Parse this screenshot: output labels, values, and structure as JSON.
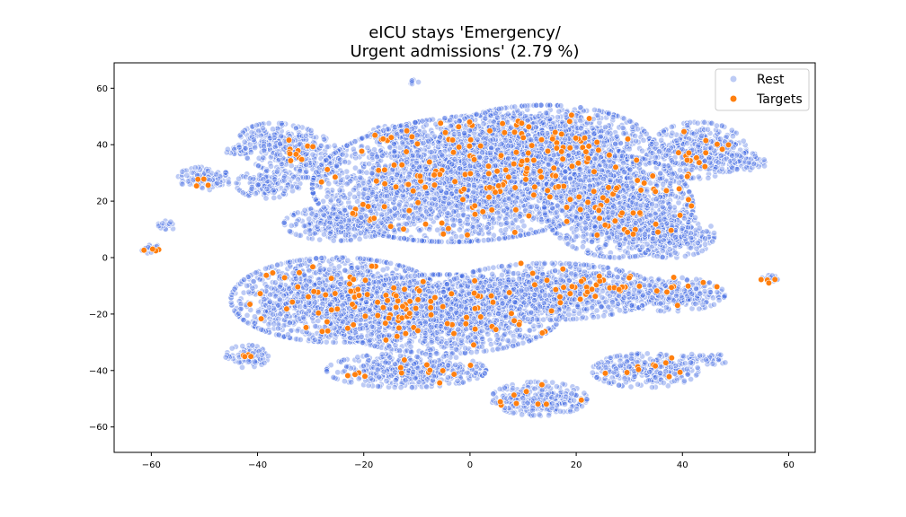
{
  "chart_data": {
    "type": "scatter",
    "title": [
      "eICU stays 'Emergency/",
      "Urgent admissions' (2.79 %)"
    ],
    "xlabel": "",
    "ylabel": "",
    "xlim": [
      -67,
      65
    ],
    "ylim": [
      -69,
      69
    ],
    "xticks": [
      -60,
      -40,
      -20,
      0,
      20,
      40,
      60
    ],
    "yticks": [
      -60,
      -40,
      -20,
      0,
      20,
      40,
      60
    ],
    "grid": false,
    "legend": {
      "position": "top-right",
      "entries": [
        "Rest",
        "Targets"
      ]
    },
    "colors": {
      "rest": "#4169e1",
      "rest_edge": "#ffffff",
      "target": "#ff7f0e",
      "target_edge": "#ffffff"
    },
    "series": [
      {
        "name": "Rest",
        "clusters": [
          {
            "cx": -60,
            "cy": 3,
            "rx": 1.8,
            "ry": 2
          },
          {
            "cx": -57,
            "cy": 11.5,
            "rx": 2,
            "ry": 1.5
          },
          {
            "cx": -50,
            "cy": 28,
            "rx": 5,
            "ry": 4,
            "rot": -10
          },
          {
            "cx": -43,
            "cy": 38,
            "rx": 3,
            "ry": 2
          },
          {
            "cx": -34,
            "cy": 38,
            "rx": 8,
            "ry": 11,
            "rot": 45
          },
          {
            "cx": -38,
            "cy": 26,
            "rx": 6,
            "ry": 5
          },
          {
            "cx": -11,
            "cy": 62,
            "rx": 1.3,
            "ry": 1
          },
          {
            "cx": -14,
            "cy": 43,
            "rx": 5,
            "ry": 4
          },
          {
            "cx": 0,
            "cy": 28,
            "rx": 30,
            "ry": 22,
            "rot": 12
          },
          {
            "cx": 14,
            "cy": 40,
            "rx": 20,
            "ry": 14
          },
          {
            "cx": 28,
            "cy": 18,
            "rx": 14,
            "ry": 18
          },
          {
            "cx": 38,
            "cy": 8,
            "rx": 8,
            "ry": 8
          },
          {
            "cx": -25,
            "cy": 12,
            "rx": 10,
            "ry": 6
          },
          {
            "cx": 43,
            "cy": 38,
            "rx": 9,
            "ry": 10
          },
          {
            "cx": 52,
            "cy": 34,
            "rx": 4,
            "ry": 3
          },
          {
            "cx": -25,
            "cy": -15,
            "rx": 20,
            "ry": 15
          },
          {
            "cx": -5,
            "cy": -20,
            "rx": 22,
            "ry": 14
          },
          {
            "cx": 15,
            "cy": -12,
            "rx": 20,
            "ry": 10
          },
          {
            "cx": 38,
            "cy": -13,
            "rx": 10,
            "ry": 6
          },
          {
            "cx": -12,
            "cy": -40,
            "rx": 15,
            "ry": 6
          },
          {
            "cx": -42,
            "cy": -35,
            "rx": 4,
            "ry": 4
          },
          {
            "cx": 13,
            "cy": -50,
            "rx": 9,
            "ry": 6
          },
          {
            "cx": 33,
            "cy": -40,
            "rx": 10,
            "ry": 6
          },
          {
            "cx": 44,
            "cy": -36,
            "rx": 5,
            "ry": 2
          },
          {
            "cx": 57,
            "cy": -7,
            "rx": 2,
            "ry": 1.3
          }
        ]
      },
      {
        "name": "Targets",
        "clusters": [
          {
            "cx": -60,
            "cy": 3,
            "rx": 1.5,
            "ry": 1
          },
          {
            "cx": -51,
            "cy": 28,
            "rx": 4,
            "ry": 3
          },
          {
            "cx": -33,
            "cy": 40,
            "rx": 6,
            "ry": 8
          },
          {
            "cx": -14,
            "cy": 43,
            "rx": 4,
            "ry": 3
          },
          {
            "cx": 0,
            "cy": 28,
            "rx": 28,
            "ry": 20
          },
          {
            "cx": 14,
            "cy": 38,
            "rx": 18,
            "ry": 13
          },
          {
            "cx": 30,
            "cy": 15,
            "rx": 12,
            "ry": 15
          },
          {
            "cx": 43,
            "cy": 37,
            "rx": 8,
            "ry": 9
          },
          {
            "cx": -25,
            "cy": -15,
            "rx": 18,
            "ry": 13
          },
          {
            "cx": -3,
            "cy": -20,
            "rx": 20,
            "ry": 12
          },
          {
            "cx": 18,
            "cy": -10,
            "rx": 18,
            "ry": 9
          },
          {
            "cx": 38,
            "cy": -12,
            "rx": 9,
            "ry": 5
          },
          {
            "cx": -12,
            "cy": -40,
            "rx": 13,
            "ry": 5
          },
          {
            "cx": -42,
            "cy": -35,
            "rx": 3,
            "ry": 3
          },
          {
            "cx": 13,
            "cy": -50,
            "rx": 8,
            "ry": 5
          },
          {
            "cx": 34,
            "cy": -40,
            "rx": 9,
            "ry": 5
          },
          {
            "cx": 56,
            "cy": -8,
            "rx": 1.5,
            "ry": 1
          }
        ]
      }
    ]
  }
}
